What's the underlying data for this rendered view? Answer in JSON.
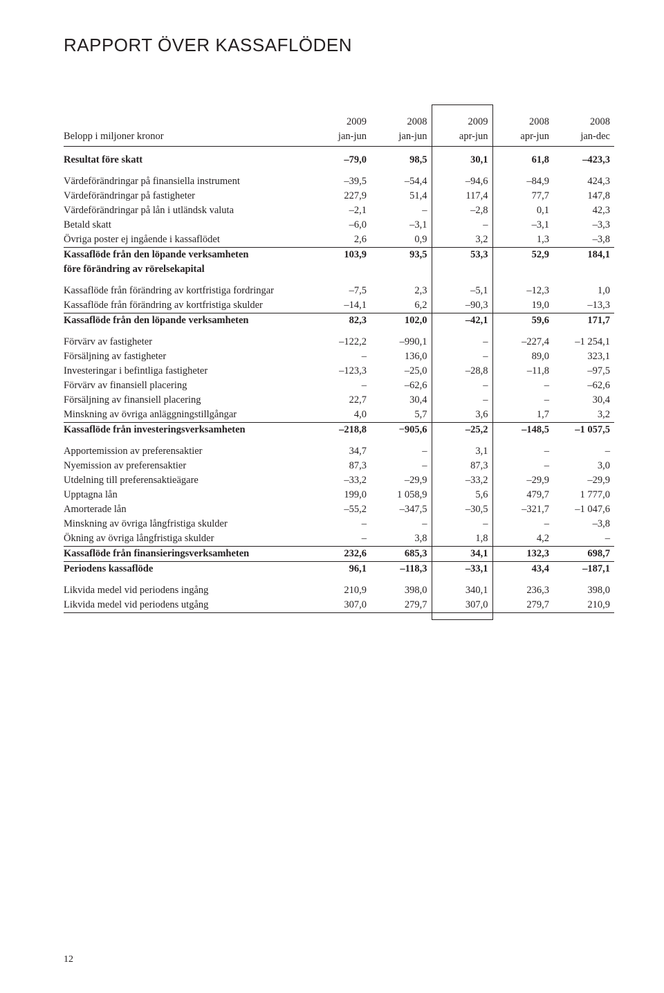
{
  "title": "RAPPORT ÖVER KASSAFLÖDEN",
  "page_number": "12",
  "header": {
    "row_label": "Belopp i miljoner kronor",
    "cols": [
      {
        "year": "2009",
        "period": "jan-jun"
      },
      {
        "year": "2008",
        "period": "jan-jun"
      },
      {
        "year": "2009",
        "period": "apr-jun"
      },
      {
        "year": "2008",
        "period": "apr-jun"
      },
      {
        "year": "2008",
        "period": "jan-dec"
      }
    ]
  },
  "focus_col_index": 2,
  "rows": [
    {
      "type": "data",
      "bold": true,
      "label": "Resultat före skatt",
      "v": [
        "–79,0",
        "98,5",
        "30,1",
        "61,8",
        "–423,3"
      ]
    },
    {
      "type": "sp"
    },
    {
      "type": "data",
      "label": "Värdeförändringar på finansiella instrument",
      "v": [
        "–39,5",
        "–54,4",
        "–94,6",
        "–84,9",
        "424,3"
      ]
    },
    {
      "type": "data",
      "label": "Värdeförändringar på fastigheter",
      "v": [
        "227,9",
        "51,4",
        "117,4",
        "77,7",
        "147,8"
      ]
    },
    {
      "type": "data",
      "label": "Värdeförändringar på lån i utländsk valuta",
      "v": [
        "–2,1",
        "–",
        "–2,8",
        "0,1",
        "42,3"
      ]
    },
    {
      "type": "data",
      "label": "Betald skatt",
      "v": [
        "–6,0",
        "–3,1",
        "–",
        "–3,1",
        "–3,3"
      ]
    },
    {
      "type": "data",
      "label": "Övriga poster ej ingående i kassaflödet",
      "v": [
        "2,6",
        "0,9",
        "3,2",
        "1,3",
        "–3,8"
      ]
    },
    {
      "type": "rule"
    },
    {
      "type": "data",
      "bold": true,
      "label": "Kassaflöde från den löpande verksamheten",
      "label2": "före förändring av rörelsekapital",
      "v": [
        "103,9",
        "93,5",
        "53,3",
        "52,9",
        "184,1"
      ]
    },
    {
      "type": "sp"
    },
    {
      "type": "data",
      "label": "Kassaflöde från förändring av kortfristiga fordringar",
      "v": [
        "–7,5",
        "2,3",
        "–5,1",
        "–12,3",
        "1,0"
      ]
    },
    {
      "type": "data",
      "label": "Kassaflöde från förändring av kortfristiga skulder",
      "v": [
        "–14,1",
        "6,2",
        "–90,3",
        "19,0",
        "–13,3"
      ]
    },
    {
      "type": "rule"
    },
    {
      "type": "data",
      "bold": true,
      "label": "Kassaflöde från den löpande verksamheten",
      "v": [
        "82,3",
        "102,0",
        "–42,1",
        "59,6",
        "171,7"
      ]
    },
    {
      "type": "sp"
    },
    {
      "type": "data",
      "label": "Förvärv av fastigheter",
      "v": [
        "–122,2",
        "–990,1",
        "–",
        "–227,4",
        "–1 254,1"
      ]
    },
    {
      "type": "data",
      "label": "Försäljning av fastigheter",
      "v": [
        "–",
        "136,0",
        "–",
        "89,0",
        "323,1"
      ]
    },
    {
      "type": "data",
      "label": "Investeringar i befintliga fastigheter",
      "v": [
        "–123,3",
        "–25,0",
        "–28,8",
        "–11,8",
        "–97,5"
      ]
    },
    {
      "type": "data",
      "label": "Förvärv av finansiell placering",
      "v": [
        "–",
        "–62,6",
        "–",
        "–",
        "–62,6"
      ]
    },
    {
      "type": "data",
      "label": "Försäljning av finansiell placering",
      "v": [
        "22,7",
        "30,4",
        "–",
        "–",
        "30,4"
      ]
    },
    {
      "type": "data",
      "label": "Minskning av övriga anläggningstillgångar",
      "v": [
        "4,0",
        "5,7",
        "3,6",
        "1,7",
        "3,2"
      ]
    },
    {
      "type": "rule"
    },
    {
      "type": "data",
      "bold": true,
      "label": "Kassaflöde från investeringsverksamheten",
      "v": [
        "–218,8",
        "−905,6",
        "–25,2",
        "–148,5",
        "–1 057,5"
      ]
    },
    {
      "type": "sp"
    },
    {
      "type": "data",
      "label": "Apportemission av preferensaktier",
      "v": [
        "34,7",
        "–",
        "3,1",
        "–",
        "–"
      ]
    },
    {
      "type": "data",
      "label": "Nyemission av preferensaktier",
      "v": [
        "87,3",
        "–",
        "87,3",
        "–",
        "3,0"
      ]
    },
    {
      "type": "data",
      "label": "Utdelning till preferensaktieägare",
      "v": [
        "–33,2",
        "–29,9",
        "–33,2",
        "–29,9",
        "–29,9"
      ]
    },
    {
      "type": "data",
      "label": "Upptagna lån",
      "v": [
        "199,0",
        "1 058,9",
        "5,6",
        "479,7",
        "1 777,0"
      ]
    },
    {
      "type": "data",
      "label": "Amorterade lån",
      "v": [
        "–55,2",
        "–347,5",
        "–30,5",
        "–321,7",
        "–1 047,6"
      ]
    },
    {
      "type": "data",
      "label": "Minskning av övriga långfristiga skulder",
      "v": [
        "–",
        "–",
        "–",
        "–",
        "–3,8"
      ]
    },
    {
      "type": "data",
      "label": "Ökning av övriga långfristiga skulder",
      "v": [
        "–",
        "3,8",
        "1,8",
        "4,2",
        "–"
      ]
    },
    {
      "type": "rule"
    },
    {
      "type": "data",
      "bold": true,
      "label": "Kassaflöde från finansieringsverksamheten",
      "v": [
        "232,6",
        "685,3",
        "34,1",
        "132,3",
        "698,7"
      ]
    },
    {
      "type": "rule"
    },
    {
      "type": "data",
      "bold": true,
      "label": "Periodens kassaflöde",
      "v": [
        "96,1",
        "–118,3",
        "–33,1",
        "43,4",
        "–187,1"
      ]
    },
    {
      "type": "sp"
    },
    {
      "type": "data",
      "label": "Likvida medel vid periodens ingång",
      "v": [
        "210,9",
        "398,0",
        "340,1",
        "236,3",
        "398,0"
      ]
    },
    {
      "type": "data",
      "label": "Likvida medel vid periodens utgång",
      "v": [
        "307,0",
        "279,7",
        "307,0",
        "279,7",
        "210,9"
      ]
    },
    {
      "type": "rule"
    }
  ]
}
